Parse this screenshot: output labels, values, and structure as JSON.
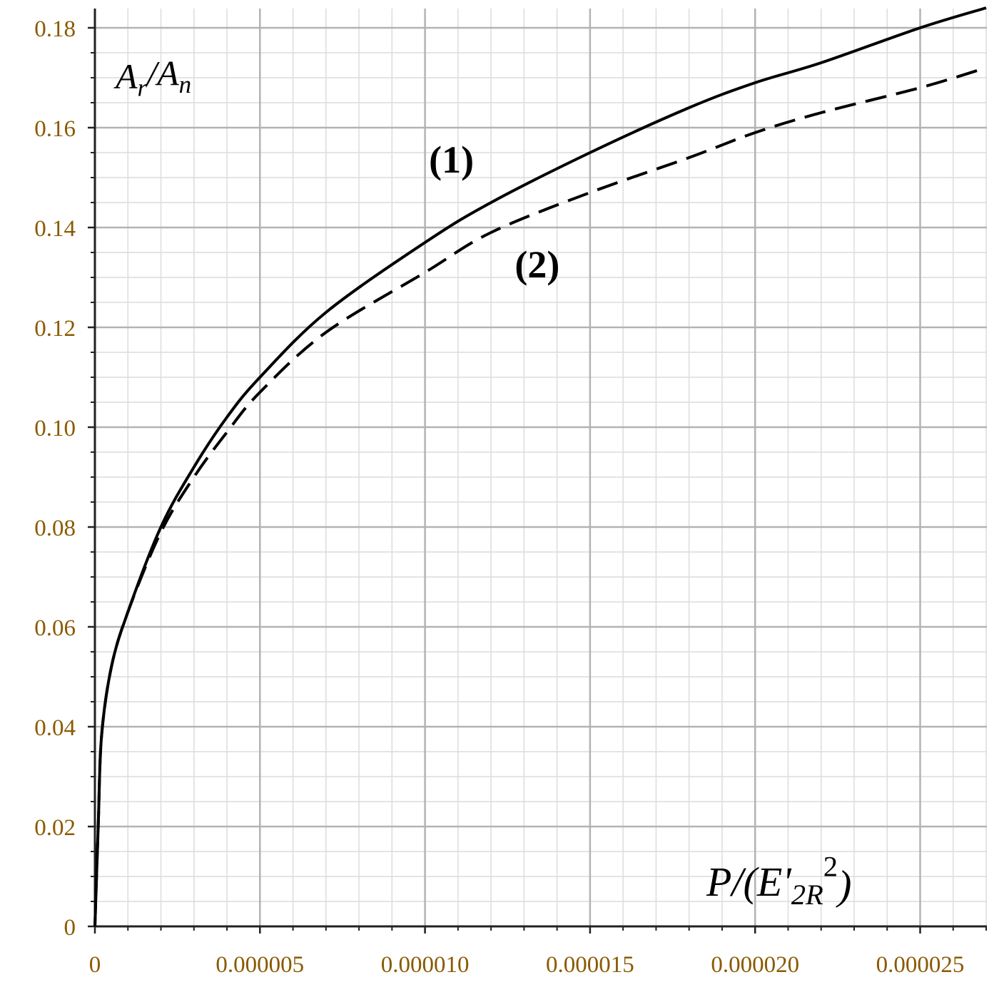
{
  "chart_data": {
    "type": "line",
    "title": "",
    "ylabel": "A_r/A_n",
    "xlabel": "P/(E'_2R^2)",
    "xlim": [
      0,
      2.7e-05
    ],
    "ylim": [
      0,
      0.185
    ],
    "grid": true,
    "legend": "none",
    "x_ticks": [
      0,
      5e-06,
      1e-05,
      1.5e-05,
      2e-05,
      2.5e-05
    ],
    "x_tick_labels": [
      "0",
      "0.000005",
      "0.000010",
      "0.000015",
      "0.000020",
      "0.000025"
    ],
    "y_ticks": [
      0,
      0.02,
      0.04,
      0.06,
      0.08,
      0.1,
      0.12,
      0.14,
      0.16,
      0.18
    ],
    "y_tick_labels": [
      "0",
      "0.02",
      "0.04",
      "0.06",
      "0.08",
      "0.10",
      "0.12",
      "0.14",
      "0.16",
      "0.18"
    ],
    "annotations": [
      {
        "text": "(1)",
        "x": 1.08e-05,
        "y": 0.151
      },
      {
        "text": "(2)",
        "x": 1.34e-05,
        "y": 0.13
      }
    ],
    "series": [
      {
        "line_style": "solid",
        "color": "#000000",
        "x": [
          0,
          1e-07,
          2e-07,
          5e-07,
          1e-06,
          2e-06,
          3e-06,
          4e-06,
          5e-06,
          7e-06,
          1e-05,
          1.2e-05,
          1.5e-05,
          1.8e-05,
          2e-05,
          2.2e-05,
          2.5e-05,
          2.7e-05
        ],
        "y": [
          0,
          0.02,
          0.038,
          0.052,
          0.063,
          0.08,
          0.092,
          0.102,
          0.11,
          0.123,
          0.137,
          0.145,
          0.155,
          0.164,
          0.169,
          0.173,
          0.18,
          0.184
        ]
      },
      {
        "line_style": "dashed",
        "color": "#000000",
        "x": [
          0,
          1e-07,
          2e-07,
          5e-07,
          1e-06,
          2e-06,
          3e-06,
          4e-06,
          5e-06,
          7e-06,
          1e-05,
          1.2e-05,
          1.5e-05,
          1.8e-05,
          2e-05,
          2.2e-05,
          2.5e-05,
          2.7e-05
        ],
        "y": [
          0,
          0.02,
          0.038,
          0.052,
          0.063,
          0.079,
          0.09,
          0.099,
          0.107,
          0.119,
          0.131,
          0.139,
          0.147,
          0.154,
          0.159,
          0.163,
          0.168,
          0.172
        ]
      }
    ]
  }
}
